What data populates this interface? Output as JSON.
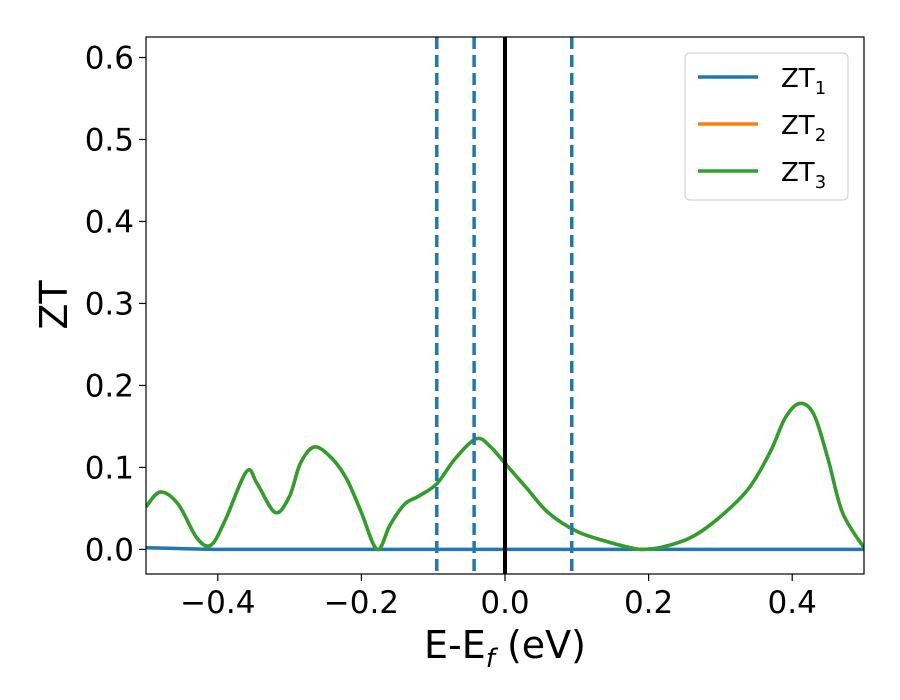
{
  "chart_data": {
    "type": "line",
    "xlabel_main": "E-E",
    "xlabel_sub": "f",
    "xlabel_tail": " (eV)",
    "ylabel": "ZT",
    "xlim": [
      -0.5,
      0.5
    ],
    "ylim": [
      -0.03,
      0.625
    ],
    "xticks": [
      -0.4,
      -0.2,
      0.0,
      0.2,
      0.4
    ],
    "xtick_labels": [
      "−0.4",
      "−0.2",
      "0.0",
      "0.2",
      "0.4"
    ],
    "yticks": [
      0.0,
      0.1,
      0.2,
      0.3,
      0.4,
      0.5,
      0.6
    ],
    "ytick_labels": [
      "0.0",
      "0.1",
      "0.2",
      "0.3",
      "0.4",
      "0.5",
      "0.6"
    ],
    "grid": false,
    "legend_position": "top-right",
    "series": [
      {
        "name": "ZT",
        "sub": "1",
        "color": "#1f77b4",
        "x": [
          -0.5,
          -0.45,
          -0.4,
          -0.3,
          -0.2,
          0.0,
          0.2,
          0.4,
          0.5
        ],
        "y": [
          0.002,
          0.001,
          0.0,
          0.0,
          0.0,
          0.0,
          0.0,
          0.0,
          0.0
        ]
      },
      {
        "name": "ZT",
        "sub": "2",
        "color": "#ff7f0e",
        "x": [
          -0.5,
          -0.48,
          -0.455,
          -0.43,
          -0.41,
          -0.39,
          -0.36,
          -0.345,
          -0.32,
          -0.3,
          -0.285,
          -0.265,
          -0.24,
          -0.22,
          -0.2,
          -0.178,
          -0.16,
          -0.14,
          -0.12,
          -0.095,
          -0.07,
          -0.04,
          -0.02,
          0.0,
          0.03,
          0.06,
          0.1,
          0.14,
          0.17,
          0.19,
          0.22,
          0.26,
          0.3,
          0.34,
          0.37,
          0.39,
          0.41,
          0.43,
          0.45,
          0.47,
          0.5
        ],
        "y": [
          0.052,
          0.07,
          0.055,
          0.015,
          0.005,
          0.035,
          0.095,
          0.08,
          0.045,
          0.065,
          0.105,
          0.125,
          0.11,
          0.085,
          0.045,
          0.0,
          0.03,
          0.055,
          0.065,
          0.08,
          0.11,
          0.135,
          0.125,
          0.105,
          0.075,
          0.045,
          0.022,
          0.01,
          0.003,
          0.0,
          0.003,
          0.015,
          0.04,
          0.075,
          0.12,
          0.16,
          0.178,
          0.165,
          0.11,
          0.045,
          0.002
        ]
      },
      {
        "name": "ZT",
        "sub": "3",
        "color": "#2ca02c",
        "x": [
          -0.5,
          -0.48,
          -0.455,
          -0.43,
          -0.41,
          -0.39,
          -0.36,
          -0.345,
          -0.32,
          -0.3,
          -0.285,
          -0.265,
          -0.24,
          -0.22,
          -0.2,
          -0.178,
          -0.16,
          -0.14,
          -0.12,
          -0.095,
          -0.07,
          -0.04,
          -0.02,
          0.0,
          0.03,
          0.06,
          0.1,
          0.14,
          0.17,
          0.19,
          0.22,
          0.26,
          0.3,
          0.34,
          0.37,
          0.39,
          0.41,
          0.43,
          0.45,
          0.47,
          0.5
        ],
        "y": [
          0.052,
          0.07,
          0.055,
          0.015,
          0.005,
          0.035,
          0.095,
          0.08,
          0.045,
          0.065,
          0.105,
          0.125,
          0.11,
          0.085,
          0.045,
          0.0,
          0.03,
          0.055,
          0.065,
          0.08,
          0.11,
          0.135,
          0.125,
          0.105,
          0.075,
          0.045,
          0.022,
          0.01,
          0.003,
          0.0,
          0.003,
          0.015,
          0.04,
          0.075,
          0.12,
          0.16,
          0.178,
          0.165,
          0.11,
          0.045,
          0.002
        ]
      }
    ],
    "dashed_vlines": {
      "color": "#1f77b4",
      "x": [
        -0.095,
        -0.043,
        0.093
      ]
    },
    "solid_vline": {
      "color": "#000000",
      "x": 0.0
    }
  }
}
